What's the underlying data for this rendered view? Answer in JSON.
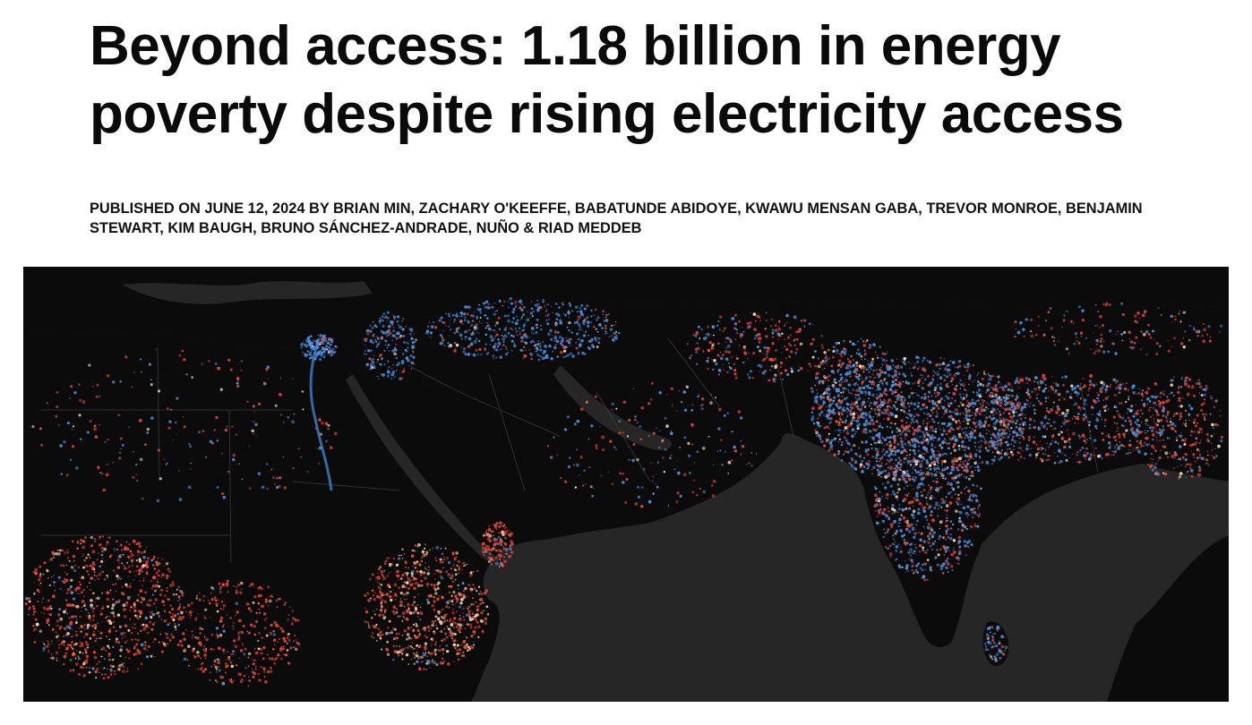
{
  "article": {
    "title": "Beyond access: 1.18 billion in energy poverty despite rising electricity access",
    "byline": "PUBLISHED ON JUNE 12, 2024 BY BRIAN MIN, ZACHARY O'KEEFFE, BABATUNDE ABIDOYE, KWAWU MENSAN GABA, TREVOR MONROE, BENJAMIN STEWART, KIM BAUGH, BRUNO SÁNCHEZ-ANDRADE, NUÑO & RIAD MEDDEB"
  },
  "hero_map": {
    "colors": {
      "ocean": "#262626",
      "land": "#0b0b0b",
      "borders": "#3a3a3a",
      "reliable_light": "#4a90e2",
      "energy_poverty": "#e8473a",
      "bright_core": "#f3d6b0"
    }
  }
}
